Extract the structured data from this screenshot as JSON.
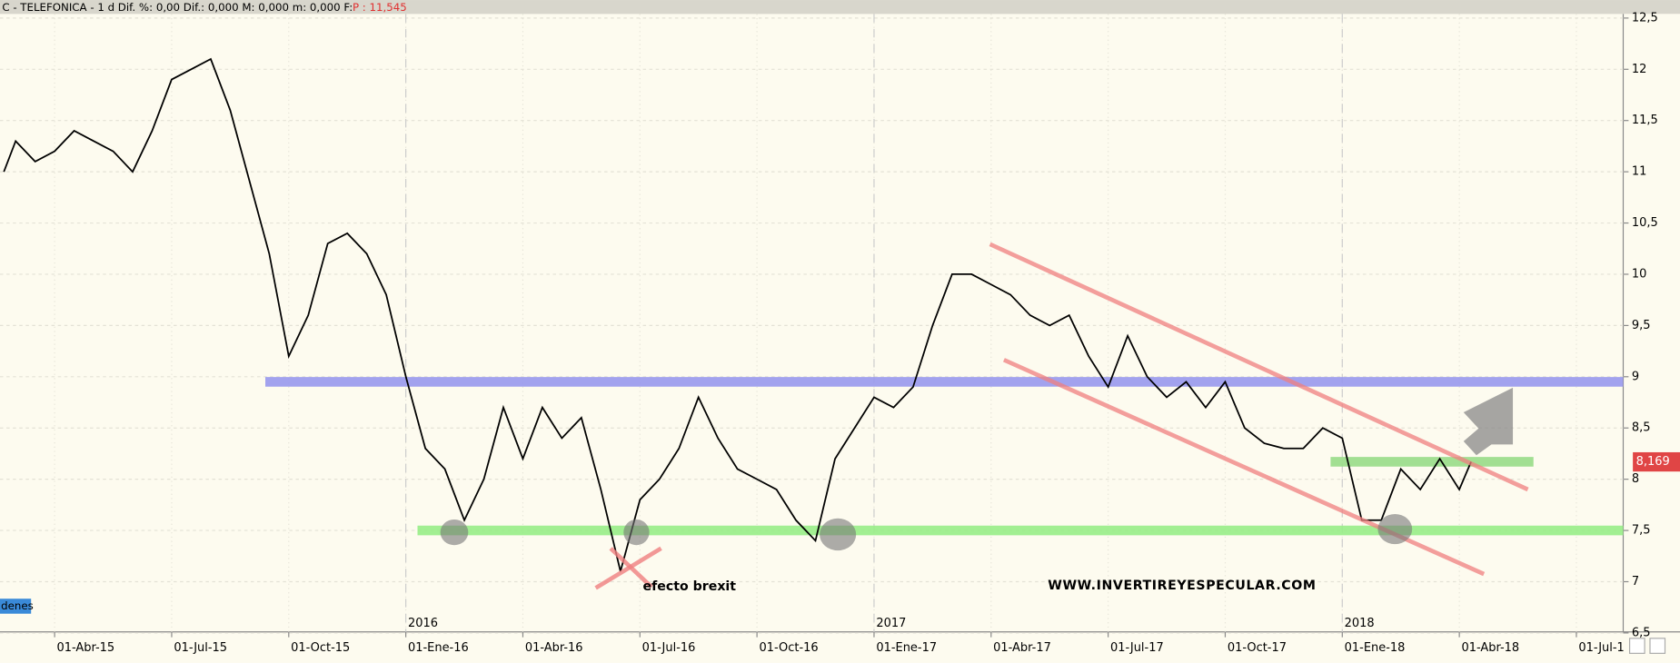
{
  "chart_data": {
    "type": "line",
    "title": "C - TELEFONICA -  1 d  Dif. %: 0,00  Dif.: 0,000  M: 0,000  m: 0,000  F:",
    "title_price": "P : 11,545",
    "series": [
      {
        "name": "TELEFONICA",
        "color": "#000000",
        "x": [
          1.7,
          2.0,
          2.5,
          3.0,
          3.5,
          4.0,
          4.5,
          5.0,
          5.5,
          6.0,
          6.5,
          7.0,
          7.5,
          8.0,
          8.5,
          9.0,
          9.5,
          10.0,
          10.5,
          11.0,
          11.5,
          12.0,
          12.5,
          13.0,
          13.5,
          14.0,
          14.5,
          15.0,
          15.5,
          16.0,
          16.5,
          17.0,
          17.5,
          18.0,
          18.5,
          19.0,
          19.5,
          20.0,
          20.5,
          21.0,
          21.5,
          22.0,
          22.5,
          23.0,
          23.5,
          24.0,
          24.5,
          25.0,
          25.5,
          26.0,
          26.5,
          27.0,
          27.5,
          28.0,
          28.5,
          29.0,
          29.5,
          30.0,
          30.5,
          31.0,
          31.5,
          32.0,
          32.5,
          33.0,
          33.5,
          34.0,
          34.5,
          35.0,
          35.5,
          36.0,
          36.5,
          37.0,
          37.5,
          38.0,
          38.5,
          39.0,
          39.3
        ],
        "values": [
          11.0,
          11.3,
          11.1,
          11.2,
          11.4,
          11.3,
          11.2,
          11.0,
          11.4,
          11.9,
          12.0,
          12.1,
          11.6,
          10.9,
          10.2,
          9.2,
          9.6,
          10.3,
          10.4,
          10.2,
          9.8,
          9.0,
          8.3,
          8.1,
          7.6,
          8.0,
          8.7,
          8.2,
          8.7,
          8.4,
          8.6,
          7.9,
          7.1,
          7.8,
          8.0,
          8.3,
          8.8,
          8.4,
          8.1,
          8.0,
          7.9,
          7.6,
          7.4,
          8.2,
          8.5,
          8.8,
          8.7,
          8.9,
          9.5,
          10.0,
          10.0,
          9.9,
          9.8,
          9.6,
          9.5,
          9.6,
          9.2,
          8.9,
          9.4,
          9.0,
          8.8,
          8.95,
          8.7,
          8.95,
          8.5,
          8.35,
          8.3,
          8.3,
          8.5,
          8.4,
          7.6,
          7.6,
          8.1,
          7.9,
          8.2,
          7.9,
          8.17
        ]
      }
    ],
    "last_price": {
      "value": 8.169,
      "label": "8,169"
    },
    "xlim": [
      1.6,
      43.2
    ],
    "xticks": [
      {
        "value": 3,
        "label": "01-Abr-15"
      },
      {
        "value": 6,
        "label": "01-Jul-15"
      },
      {
        "value": 9,
        "label": "01-Oct-15"
      },
      {
        "value": 12,
        "label": "01-Ene-16"
      },
      {
        "value": 15,
        "label": "01-Abr-16"
      },
      {
        "value": 18,
        "label": "01-Jul-16"
      },
      {
        "value": 21,
        "label": "01-Oct-16"
      },
      {
        "value": 24,
        "label": "01-Ene-17"
      },
      {
        "value": 27,
        "label": "01-Abr-17"
      },
      {
        "value": 30,
        "label": "01-Jul-17"
      },
      {
        "value": 33,
        "label": "01-Oct-17"
      },
      {
        "value": 36,
        "label": "01-Ene-18"
      },
      {
        "value": 39,
        "label": "01-Abr-18"
      },
      {
        "value": 42,
        "label": "01-Jul-1"
      }
    ],
    "year_markers": [
      {
        "value": 12,
        "label": "2016"
      },
      {
        "value": 24,
        "label": "2017"
      },
      {
        "value": 36,
        "label": "2018"
      }
    ],
    "ylim": [
      6.51,
      12.54
    ],
    "yticks": [
      {
        "value": 6.5,
        "label": "6,5"
      },
      7,
      {
        "value": 7.5,
        "label": "7,5"
      },
      8,
      {
        "value": 8.5,
        "label": "8,5"
      },
      9,
      {
        "value": 9.5,
        "label": "9,5"
      },
      10,
      {
        "value": 10.5,
        "label": "10,5"
      },
      11,
      {
        "value": 11.5,
        "label": "11,5"
      },
      12,
      {
        "value": 12.5,
        "label": "12,5"
      }
    ],
    "grid": true,
    "levels": [
      {
        "value": 8.95,
        "color": "#9999ee",
        "x": [
          8.4,
          43.2
        ]
      },
      {
        "value": 7.5,
        "color": "#99ee88",
        "x": [
          12.3,
          43.2
        ]
      },
      {
        "value": 8.17,
        "color": "#99dd88",
        "x": [
          35.7,
          40.9
        ]
      }
    ],
    "annotations": [
      "efecto brexit",
      "WWW.INVERTIREYESPECULAR.COM"
    ],
    "side_button": "denes"
  }
}
